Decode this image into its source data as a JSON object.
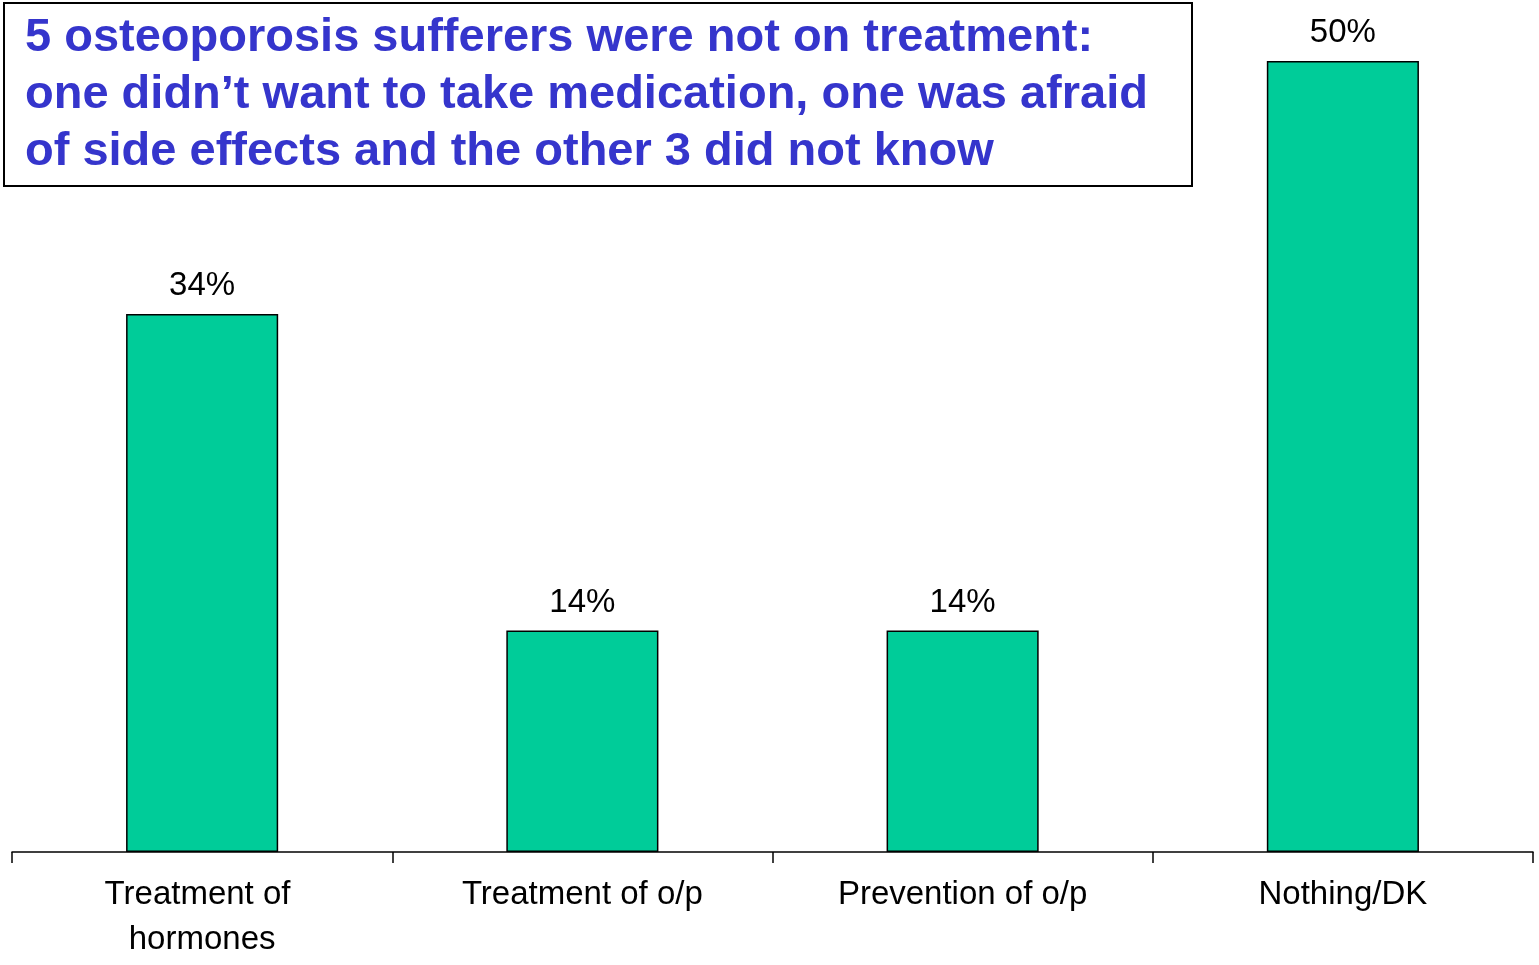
{
  "chart_data": {
    "type": "bar",
    "categories": [
      "Treatment of hormones",
      "Treatment of o/p",
      "Prevention of o/p",
      "Nothing/DK"
    ],
    "values": [
      34,
      14,
      14,
      50
    ],
    "value_labels": [
      "34%",
      "14%",
      "14%",
      "50%"
    ],
    "color": "#00cc99",
    "ylim": [
      0,
      50
    ],
    "tick_labels": "x",
    "annotations": [
      "5 osteoporosis sufferers were not on treatment: one didn’t want to take medication, one was afraid of side effects and the other 3 did not know"
    ]
  }
}
